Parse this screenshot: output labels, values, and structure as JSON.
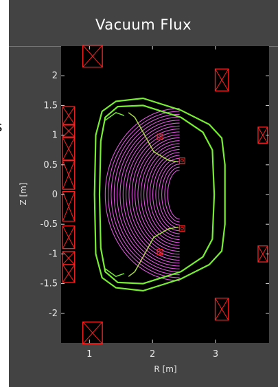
{
  "window": {
    "title": "Vacuum Flux"
  },
  "cut_text": "s",
  "colors": {
    "window_bg": "#434343",
    "plot_bg": "#000000",
    "coil": "#ff2020",
    "wall": "#77ee33",
    "flux": "#dd55dd"
  },
  "chart_data": {
    "type": "line",
    "title": "Vacuum Flux",
    "xlabel": "R [m]",
    "ylabel": "Z [m]",
    "xlim": [
      0.55,
      3.85
    ],
    "ylim": [
      -2.5,
      2.5
    ],
    "x_ticks": [
      1,
      2,
      3
    ],
    "y_ticks": [
      2,
      1.5,
      1,
      0.5,
      0,
      -0.5,
      -1,
      -1.5,
      -2
    ],
    "x_tick_labels": [
      "1",
      "2",
      "3"
    ],
    "y_tick_labels": [
      "2",
      "1.5",
      "1",
      "0.5",
      "0",
      "-0.5",
      "-1",
      "-1.5",
      "-2"
    ],
    "coils": [
      {
        "r": 1.05,
        "z": 2.33,
        "w": 0.31,
        "h": 0.37
      },
      {
        "r": 1.05,
        "z": -2.33,
        "w": 0.31,
        "h": 0.37
      },
      {
        "r": 3.1,
        "z": 1.93,
        "w": 0.21,
        "h": 0.37
      },
      {
        "r": 3.1,
        "z": -1.93,
        "w": 0.21,
        "h": 0.37
      },
      {
        "r": 3.75,
        "z": 1.0,
        "w": 0.15,
        "h": 0.27
      },
      {
        "r": 3.75,
        "z": -1.0,
        "w": 0.15,
        "h": 0.27
      },
      {
        "r": 0.67,
        "z": 1.33,
        "w": 0.19,
        "h": 0.3
      },
      {
        "r": 0.67,
        "z": 1.07,
        "w": 0.19,
        "h": 0.2
      },
      {
        "r": 0.67,
        "z": 0.77,
        "w": 0.19,
        "h": 0.38
      },
      {
        "r": 0.67,
        "z": 0.33,
        "w": 0.19,
        "h": 0.48
      },
      {
        "r": 0.67,
        "z": -0.2,
        "w": 0.19,
        "h": 0.5
      },
      {
        "r": 0.67,
        "z": -0.72,
        "w": 0.19,
        "h": 0.38
      },
      {
        "r": 0.67,
        "z": -1.07,
        "w": 0.19,
        "h": 0.22
      },
      {
        "r": 0.67,
        "z": -1.33,
        "w": 0.19,
        "h": 0.3
      }
    ],
    "small_coils": [
      {
        "r": 2.12,
        "z": 0.97
      },
      {
        "r": 2.47,
        "z": 0.57
      },
      {
        "r": 2.47,
        "z": -0.57
      },
      {
        "r": 2.12,
        "z": -0.97
      }
    ],
    "outer_wall": [
      [
        2.45,
        1.42
      ],
      [
        2.9,
        1.18
      ],
      [
        3.1,
        0.95
      ],
      [
        3.15,
        0.5
      ],
      [
        3.15,
        -0.5
      ],
      [
        3.1,
        -0.95
      ],
      [
        2.9,
        -1.18
      ],
      [
        2.45,
        -1.42
      ],
      [
        1.85,
        -1.62
      ],
      [
        1.42,
        -1.57
      ],
      [
        1.2,
        -1.4
      ],
      [
        1.1,
        -1.0
      ],
      [
        1.08,
        0
      ],
      [
        1.1,
        1.0
      ],
      [
        1.2,
        1.4
      ],
      [
        1.42,
        1.57
      ],
      [
        1.85,
        1.62
      ],
      [
        2.45,
        1.42
      ]
    ],
    "inner_wall": [
      [
        2.45,
        1.3
      ],
      [
        2.8,
        1.05
      ],
      [
        2.95,
        0.75
      ],
      [
        2.98,
        0
      ],
      [
        2.95,
        -0.75
      ],
      [
        2.8,
        -1.05
      ],
      [
        2.45,
        -1.3
      ],
      [
        1.85,
        -1.5
      ],
      [
        1.45,
        -1.48
      ],
      [
        1.25,
        -1.3
      ],
      [
        1.18,
        -0.9
      ],
      [
        1.16,
        0
      ],
      [
        1.18,
        0.9
      ],
      [
        1.25,
        1.3
      ],
      [
        1.45,
        1.48
      ],
      [
        1.85,
        1.5
      ],
      [
        2.45,
        1.3
      ]
    ],
    "flux_region": {
      "r_min": 1.25,
      "r_max": 2.43,
      "z_max": 1.45,
      "levels": 22
    },
    "separatrix_upper": [
      [
        1.62,
        1.38
      ],
      [
        1.72,
        1.3
      ],
      [
        1.85,
        1.05
      ],
      [
        2.02,
        0.72
      ],
      [
        2.25,
        0.58
      ],
      [
        2.4,
        0.55
      ]
    ],
    "separatrix_lower": [
      [
        1.62,
        -1.38
      ],
      [
        1.72,
        -1.3
      ],
      [
        1.85,
        -1.05
      ],
      [
        2.02,
        -0.72
      ],
      [
        2.25,
        -0.58
      ],
      [
        2.4,
        -0.55
      ]
    ],
    "upper_divertor": [
      [
        1.25,
        1.25
      ],
      [
        1.42,
        1.38
      ],
      [
        1.55,
        1.33
      ]
    ],
    "lower_divertor": [
      [
        1.25,
        -1.25
      ],
      [
        1.42,
        -1.38
      ],
      [
        1.55,
        -1.33
      ]
    ]
  }
}
